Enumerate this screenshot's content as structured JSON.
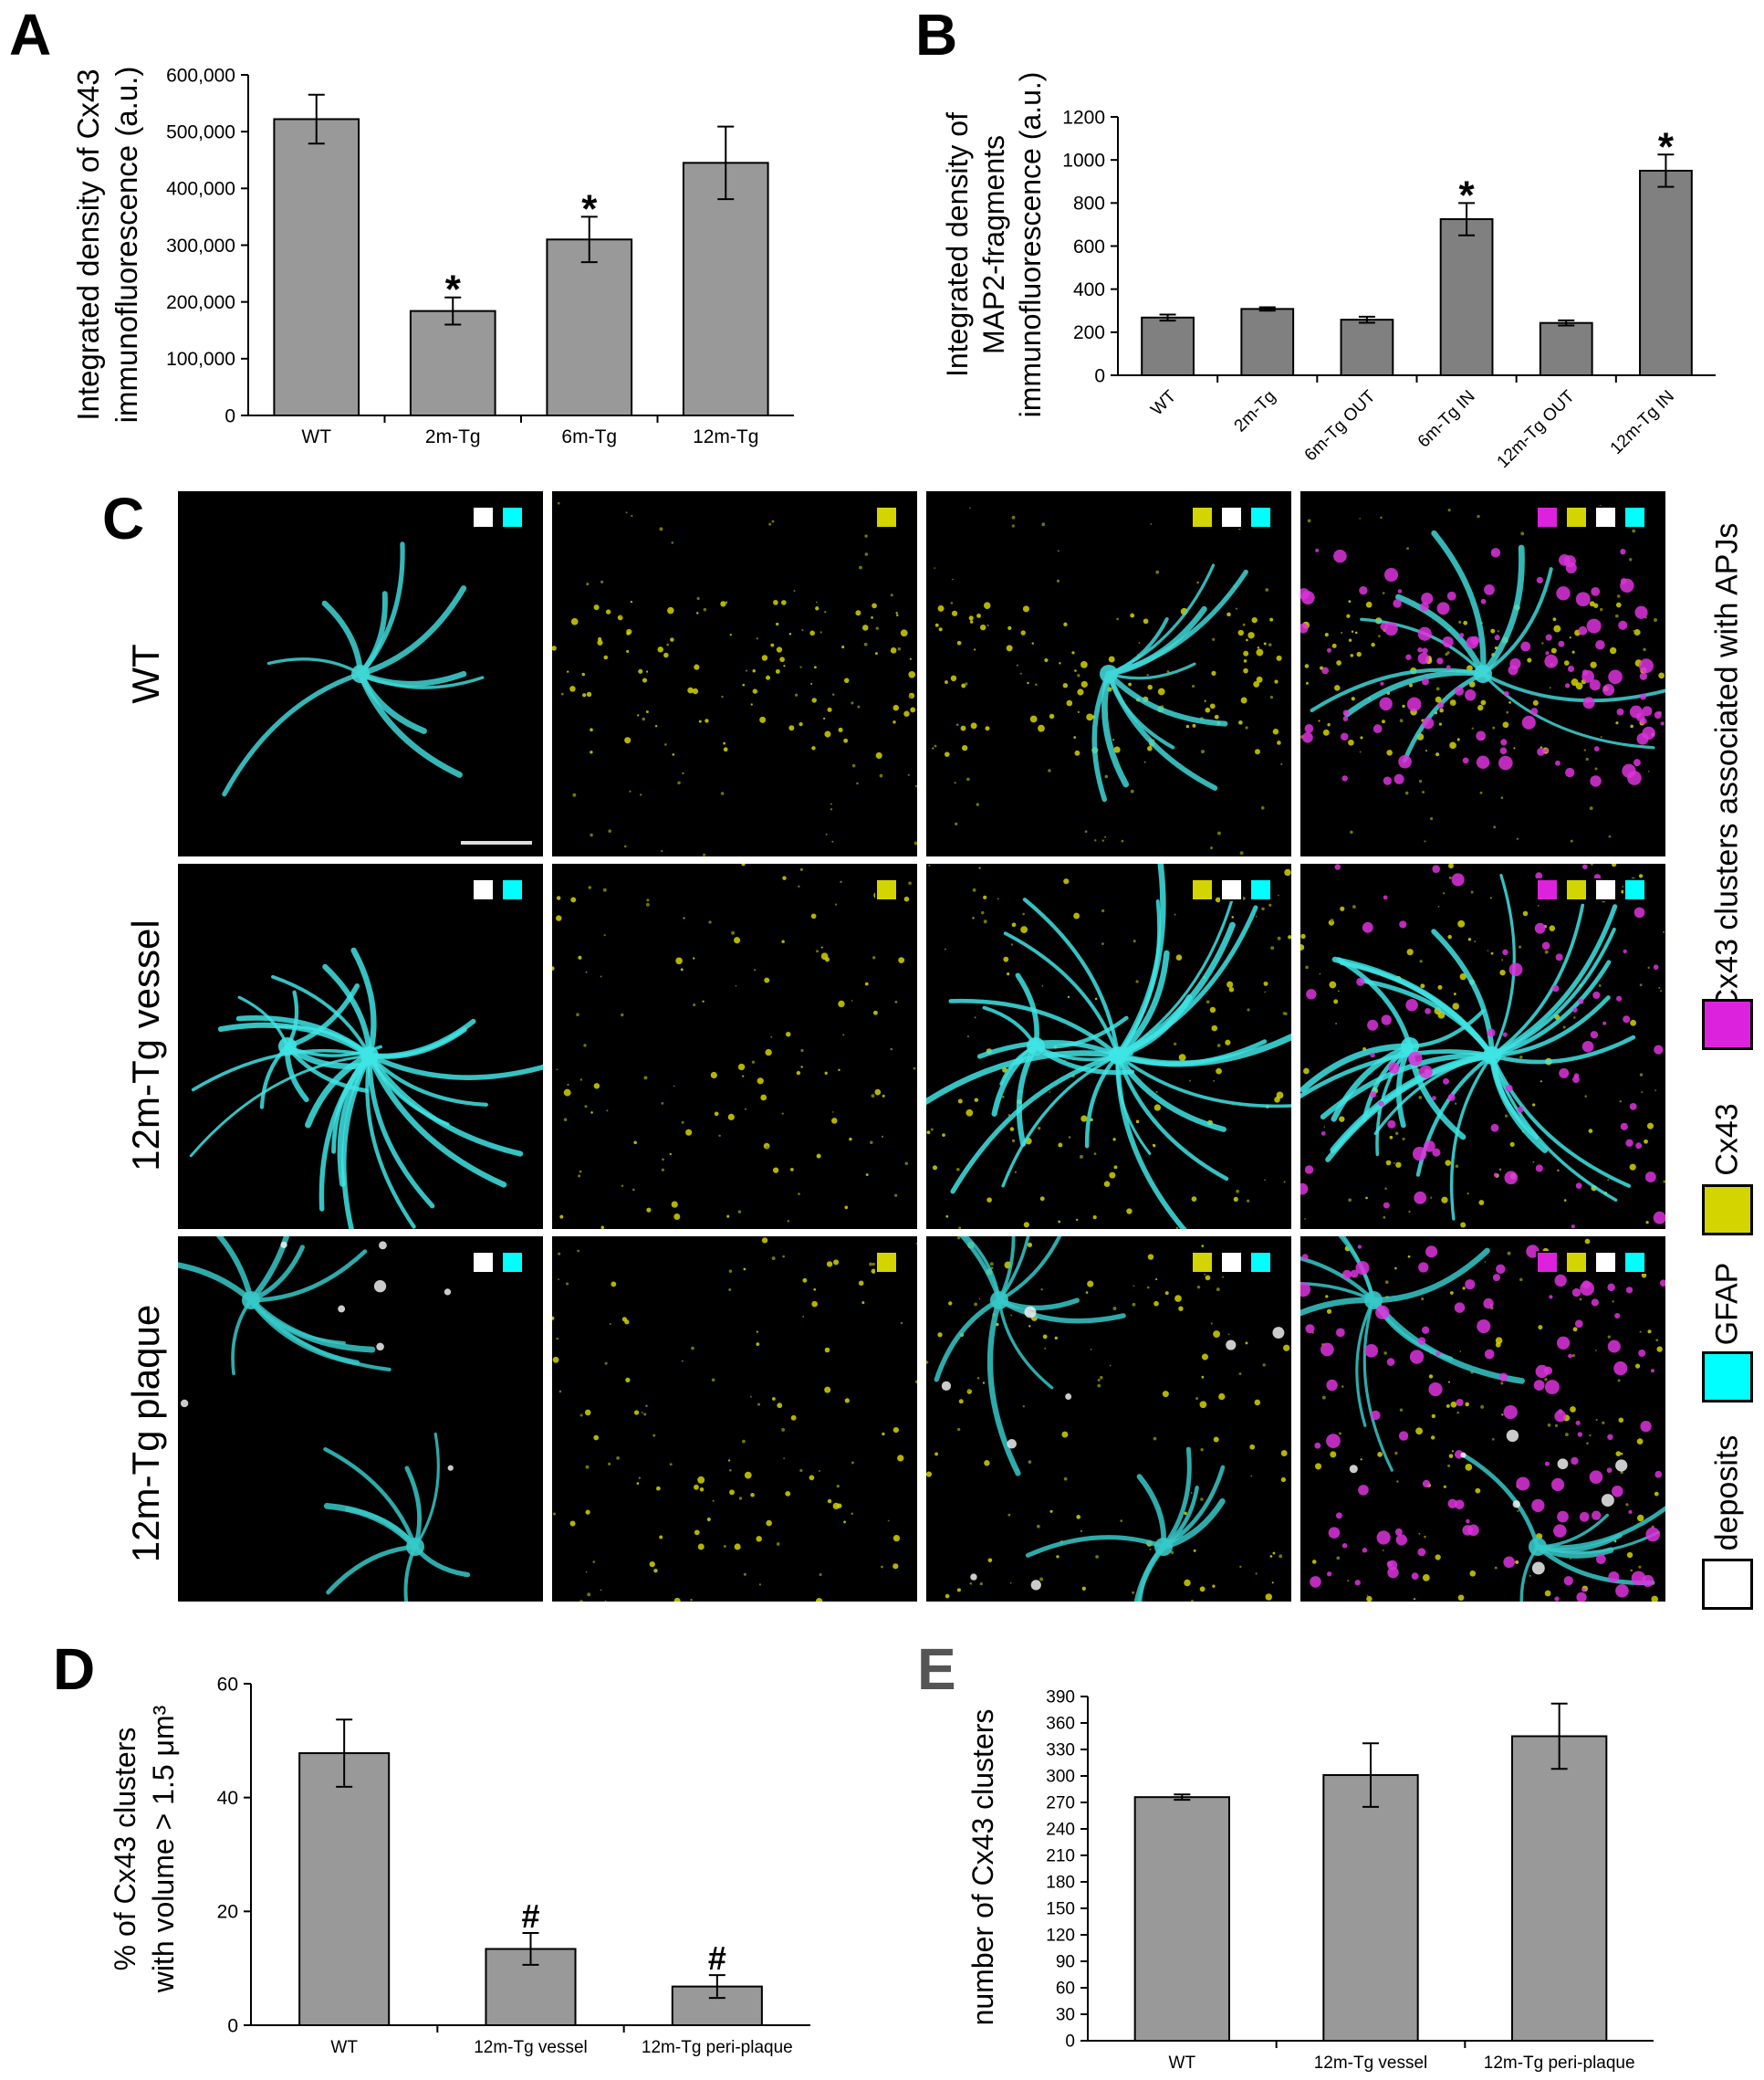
{
  "panels": {
    "a": "A",
    "b": "B",
    "c": "C",
    "d": "D",
    "e": "E"
  },
  "chart_data": [
    {
      "id": "A",
      "type": "bar",
      "ylabel_lines": [
        "Integrated density of Cx43",
        "immunofluorescence (a.u.)"
      ],
      "categories": [
        "WT",
        "2m-Tg",
        "6m-Tg",
        "12m-Tg"
      ],
      "values": [
        522000,
        184000,
        310000,
        445000
      ],
      "errors": [
        43000,
        24000,
        40000,
        64000
      ],
      "significance": [
        "",
        "*",
        "*",
        ""
      ],
      "ylim": [
        0,
        600000
      ],
      "yticks": [
        0,
        100000,
        200000,
        300000,
        400000,
        500000,
        600000
      ],
      "ytick_labels": [
        "0",
        "100,000",
        "200,000",
        "300,000",
        "400,000",
        "500,000",
        "600,000"
      ],
      "bar_color": "#999999"
    },
    {
      "id": "B",
      "type": "bar",
      "ylabel_lines": [
        "Integrated density of",
        "MAP2-fragments",
        "immunofluorescence (a.u.)"
      ],
      "categories": [
        "WT",
        "2m-Tg",
        "6m-Tg OUT",
        "6m-Tg IN",
        "12m-Tg OUT",
        "12m-Tg IN"
      ],
      "values": [
        268,
        308,
        258,
        725,
        243,
        950
      ],
      "errors": [
        14,
        8,
        14,
        75,
        12,
        75
      ],
      "significance": [
        "",
        "",
        "",
        "*",
        "",
        "*"
      ],
      "ylim": [
        0,
        1200
      ],
      "yticks": [
        0,
        200,
        400,
        600,
        800,
        1000,
        1200
      ],
      "ytick_labels": [
        "0",
        "200",
        "400",
        "600",
        "800",
        "1000",
        "1200"
      ],
      "bar_color": "#808080"
    },
    {
      "id": "D",
      "type": "bar",
      "ylabel_lines": [
        "% of Cx43 clusters",
        "with volume > 1.5 μm³"
      ],
      "categories": [
        "WT",
        "12m-Tg vessel",
        "12m-Tg peri-plaque"
      ],
      "values": [
        47.8,
        13.4,
        6.8
      ],
      "errors": [
        5.9,
        2.8,
        2.0
      ],
      "significance": [
        "",
        "#",
        "#"
      ],
      "ylim": [
        0,
        60
      ],
      "yticks": [
        0,
        20,
        40,
        60
      ],
      "ytick_labels": [
        "0",
        "20",
        "40",
        "60"
      ],
      "bar_color": "#999999"
    },
    {
      "id": "E",
      "type": "bar",
      "ylabel_lines": [
        "number of Cx43 clusters"
      ],
      "categories": [
        "WT",
        "12m-Tg vessel",
        "12m-Tg peri-plaque"
      ],
      "values": [
        276,
        301,
        345
      ],
      "errors": [
        3,
        36,
        37
      ],
      "significance": [
        "",
        "",
        ""
      ],
      "ylim": [
        0,
        390
      ],
      "yticks": [
        0,
        30,
        60,
        90,
        120,
        150,
        180,
        210,
        240,
        270,
        300,
        330,
        360,
        390
      ],
      "ytick_labels": [
        "0",
        "30",
        "60",
        "90",
        "120",
        "150",
        "180",
        "210",
        "240",
        "270",
        "300",
        "330",
        "360",
        "390"
      ],
      "bar_color": "#999999"
    }
  ],
  "microscopy": {
    "rows": [
      "WT",
      "12m-Tg vessel",
      "12m-Tg plaque"
    ],
    "legend": [
      {
        "label": "Cx43 clusters associated with APJs",
        "color": "#dd22dd"
      },
      {
        "label": "Cx43",
        "color": "#d4d400"
      },
      {
        "label": "GFAP",
        "color": "#00ffff"
      },
      {
        "label": "deposits",
        "color": "#ffffff"
      }
    ],
    "column_channels": [
      [
        "#ffffff",
        "#00ffff"
      ],
      [
        "#d4d400"
      ],
      [
        "#d4d400",
        "#ffffff",
        "#00ffff"
      ],
      [
        "#dd22dd",
        "#d4d400",
        "#ffffff",
        "#00ffff"
      ]
    ]
  }
}
